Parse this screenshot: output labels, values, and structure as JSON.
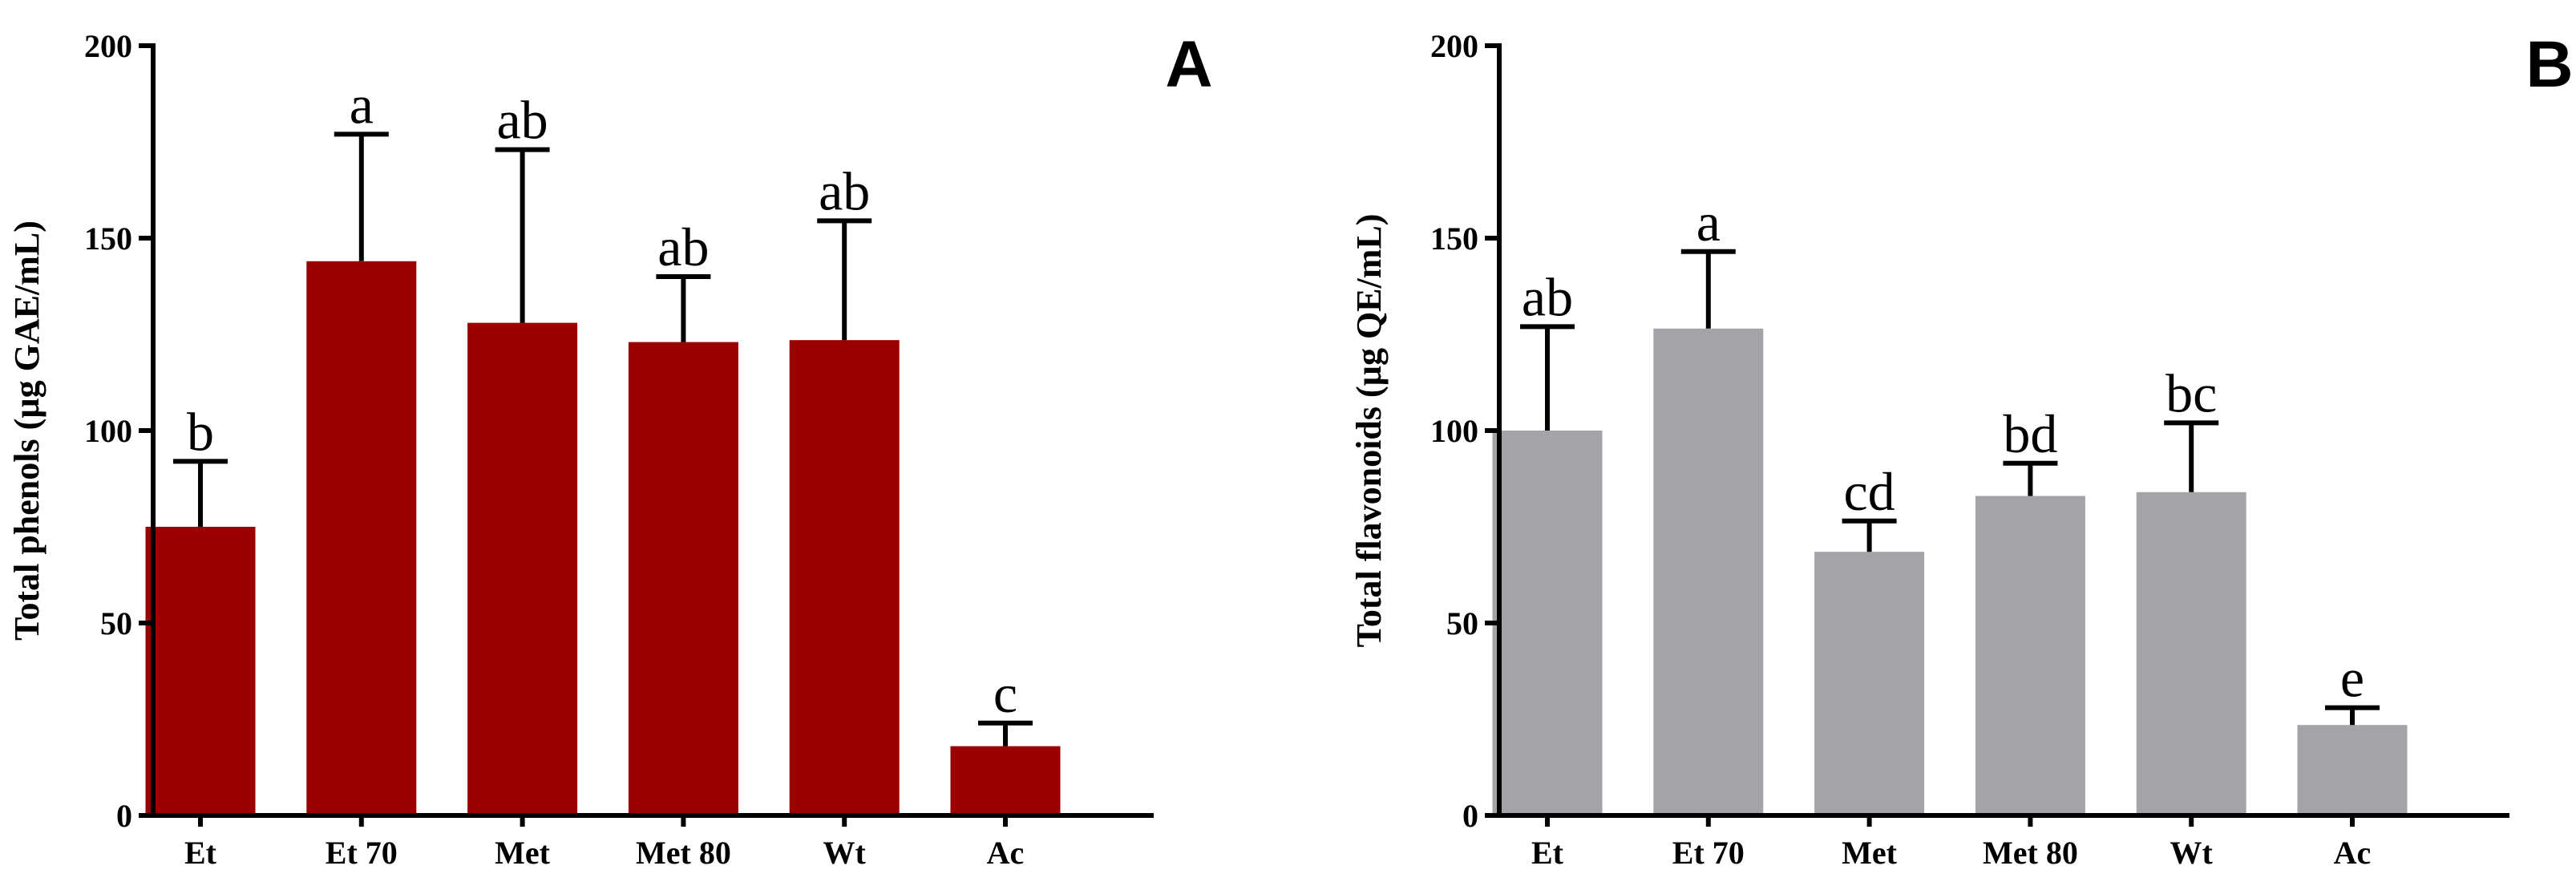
{
  "colors": {
    "panel_a_bar": "#9b0000",
    "panel_b_bar": "#a4a3a8",
    "axis": "#000000"
  },
  "chart_data": [
    {
      "type": "bar",
      "panel": "A",
      "title": "",
      "xlabel": "",
      "ylabel": "Total phenols (µg GAE/mL)",
      "ylim": [
        0,
        200
      ],
      "yticks": [
        0,
        50,
        100,
        150,
        200
      ],
      "categories": [
        "Et",
        "Et 70",
        "Met",
        "Met 80",
        "Wt",
        "Ac"
      ],
      "values": [
        75,
        144,
        128,
        123,
        123.5,
        18
      ],
      "errors": [
        17,
        33,
        45,
        17,
        31,
        6
      ],
      "significance": [
        "b",
        "a",
        "ab",
        "ab",
        "ab",
        "c"
      ],
      "bar_color": "#9b0000"
    },
    {
      "type": "bar",
      "panel": "B",
      "title": "",
      "xlabel": "",
      "ylabel": "Total flavonoids (µg QE/mL)",
      "ylim": [
        0,
        200
      ],
      "yticks": [
        0,
        50,
        100,
        150,
        200
      ],
      "categories": [
        "Et",
        "Et 70",
        "Met",
        "Met 80",
        "Wt",
        "Ac"
      ],
      "values": [
        100,
        126.5,
        68.5,
        83,
        84,
        23.5
      ],
      "errors": [
        27,
        20,
        8,
        8.5,
        18,
        4.5
      ],
      "significance": [
        "ab",
        "a",
        "cd",
        "bd",
        "bc",
        "e"
      ],
      "bar_color": "#a4a3a8"
    }
  ]
}
